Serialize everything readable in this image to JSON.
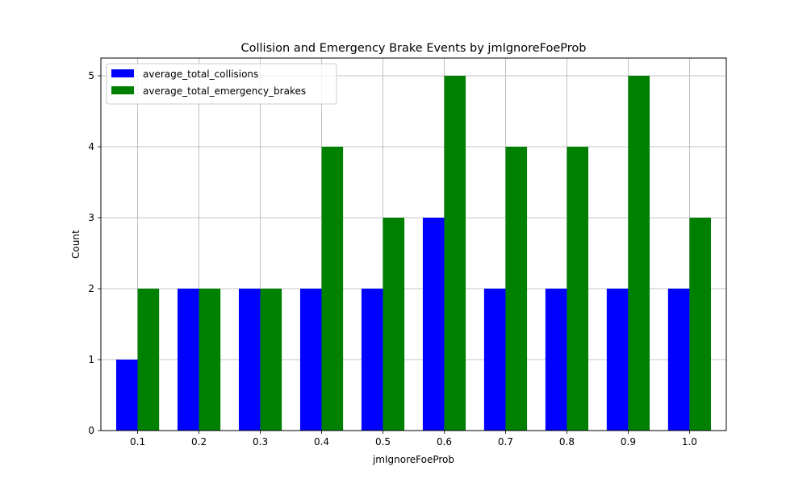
{
  "chart_data": {
    "type": "bar",
    "title": "Collision and Emergency Brake Events by jmIgnoreFoeProb",
    "xlabel": "jmIgnoreFoeProb",
    "ylabel": "Count",
    "categories": [
      "0.1",
      "0.2",
      "0.3",
      "0.4",
      "0.5",
      "0.6",
      "0.7",
      "0.8",
      "0.9",
      "1.0"
    ],
    "series": [
      {
        "name": "average_total_collisions",
        "color": "#0000ff",
        "values": [
          1,
          2,
          2,
          2,
          2,
          3,
          2,
          2,
          2,
          2
        ]
      },
      {
        "name": "average_total_emergency_brakes",
        "color": "#008000",
        "values": [
          2,
          2,
          2,
          4,
          3,
          5,
          4,
          4,
          5,
          3
        ]
      }
    ],
    "ylim": [
      0,
      5.25
    ],
    "yticks": [
      0,
      1,
      2,
      3,
      4,
      5
    ],
    "grid": true,
    "legend_position": "top-left"
  }
}
